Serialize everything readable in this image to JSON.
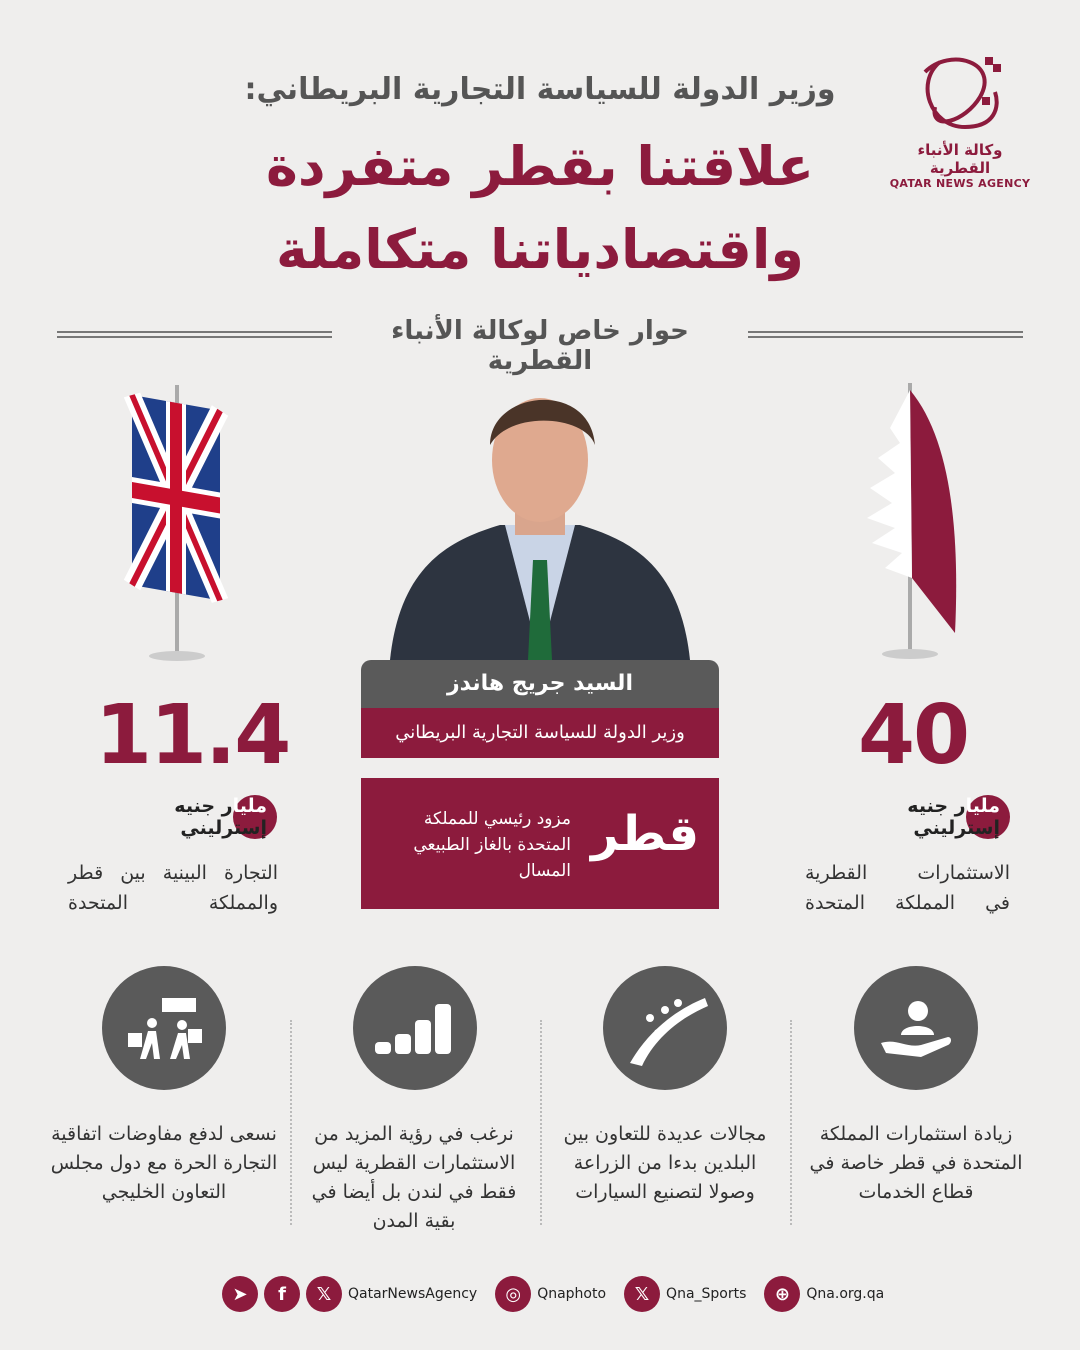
{
  "colors": {
    "accent": "#8c1b3d",
    "dark": "#5a5a5a",
    "background": "#efeeed"
  },
  "logo": {
    "ar": "وكالة الأنباء القطرية",
    "en": "QATAR NEWS AGENCY"
  },
  "header": {
    "supertitle": "وزير الدولة للسياسة التجارية البريطاني:",
    "title_line1": "علاقتنا بقطر متفردة",
    "title_line2": "واقتصادياتنا متكاملة",
    "subtitle": "حوار خاص لوكالة الأنباء القطرية"
  },
  "person": {
    "name": "السيد جريج هاندز",
    "role": "وزير الدولة للسياسة التجارية البريطاني"
  },
  "qatar_box": {
    "word": "قطر",
    "text": "مزود رئيسي للمملكة المتحدة بالغاز الطبيعي المسال"
  },
  "stats": [
    {
      "value": "11.4",
      "unit_a": "مليا",
      "unit_b": "ر جنيه إسترليني",
      "desc1": "التجارة البينية بين قطر",
      "desc2": "والمملكة المتحدة",
      "flag": "uk-flag"
    },
    {
      "value": "40",
      "unit_a": "مليا",
      "unit_b": "ر جنيه إسترليني",
      "desc1": "الاستثمارات القطرية",
      "desc2": "في المملكة المتحدة",
      "flag": "qatar-flag"
    }
  ],
  "columns": [
    {
      "icon": "hand-person-icon",
      "text": "زيادة استثمارات المملكة المتحدة في قطر خاصة في قطاع الخدمات"
    },
    {
      "icon": "agriculture-road-icon",
      "text": "مجالات عديدة للتعاون بين البلدين بدءا من الزراعة وصولا لتصنيع السيارات"
    },
    {
      "icon": "coins-stack-icon",
      "text": "نرغب في رؤية المزيد من الاستثمارات القطرية ليس فقط في لندن بل أيضا في بقية المدن"
    },
    {
      "icon": "trade-workers-icon",
      "text": "نسعى لدفع مفاوضات اتفاقية التجارة الحرة مع دول مجلس التعاون الخليجي"
    }
  ],
  "footer": {
    "handle1": "QatarNewsAgency",
    "handle2": "Qnaphoto",
    "handle3": "Qna_Sports",
    "website": "Qna.org.qa"
  }
}
